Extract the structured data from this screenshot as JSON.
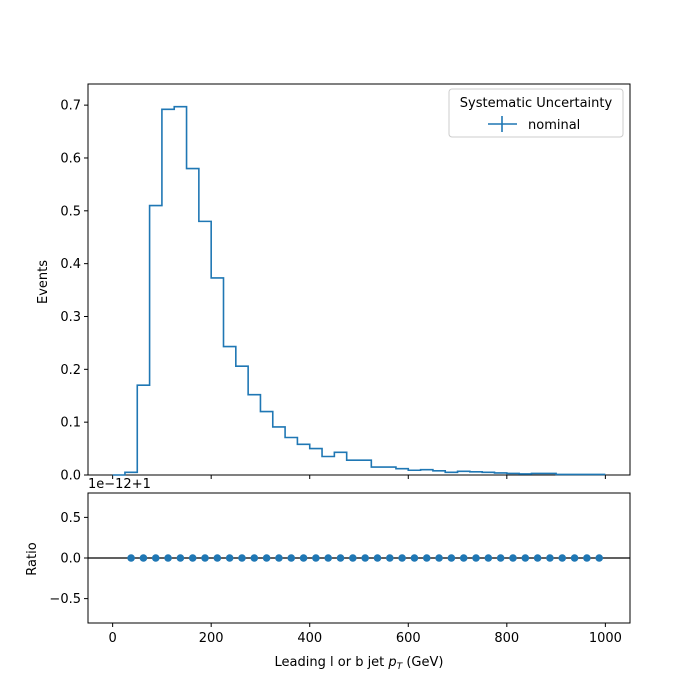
{
  "colors": {
    "series": "#1f77b4",
    "axes": "#000000",
    "background": "#ffffff"
  },
  "legend": {
    "title": "Systematic Uncertainty",
    "placement": "top-right"
  },
  "chart_data": [
    {
      "type": "histogram",
      "ylabel": "Events",
      "xlim": [
        -50,
        1050
      ],
      "ylim": [
        0,
        0.74
      ],
      "yticks": [
        0.0,
        0.1,
        0.2,
        0.3,
        0.4,
        0.5,
        0.6,
        0.7
      ],
      "ytick_labels": [
        "0.0",
        "0.1",
        "0.2",
        "0.3",
        "0.4",
        "0.5",
        "0.6",
        "0.7"
      ],
      "xticks": [
        0,
        200,
        400,
        600,
        800,
        1000
      ],
      "bin_edges": [
        0,
        25,
        50,
        75,
        100,
        125,
        150,
        175,
        200,
        225,
        250,
        275,
        300,
        325,
        350,
        375,
        400,
        425,
        450,
        475,
        500,
        525,
        550,
        575,
        600,
        625,
        650,
        675,
        700,
        725,
        750,
        775,
        800,
        825,
        850,
        875,
        900,
        925,
        950,
        975,
        1000
      ],
      "series": [
        {
          "name": "nominal",
          "values": [
            0.0,
            0.005,
            0.17,
            0.51,
            0.692,
            0.697,
            0.58,
            0.48,
            0.373,
            0.243,
            0.206,
            0.152,
            0.12,
            0.091,
            0.071,
            0.058,
            0.05,
            0.035,
            0.043,
            0.028,
            0.028,
            0.015,
            0.015,
            0.012,
            0.009,
            0.01,
            0.008,
            0.005,
            0.007,
            0.006,
            0.005,
            0.004,
            0.003,
            0.002,
            0.003,
            0.003,
            0.001,
            0.001,
            0.001,
            0.001
          ]
        }
      ],
      "grid": false
    },
    {
      "type": "scatter",
      "ylabel": "Ratio",
      "xlabel_prefix": "Leading l or b jet ",
      "xlabel_var": "p",
      "xlabel_sub": "T",
      "xlabel_suffix": " (GeV)",
      "offset_text": "1e−12+1",
      "xlim": [
        -50,
        1050
      ],
      "ylim": [
        -0.8,
        0.8
      ],
      "yticks": [
        -0.5,
        0.0,
        0.5
      ],
      "ytick_labels": [
        "−0.5",
        "0.0",
        "0.5"
      ],
      "xticks": [
        0,
        200,
        400,
        600,
        800,
        1000
      ],
      "xtick_labels": [
        "0",
        "200",
        "400",
        "600",
        "800",
        "1000"
      ],
      "reference_line": 0.0,
      "series": [
        {
          "name": "nominal",
          "x": [
            37.5,
            62.5,
            87.5,
            112.5,
            137.5,
            162.5,
            187.5,
            212.5,
            237.5,
            262.5,
            287.5,
            312.5,
            337.5,
            362.5,
            387.5,
            412.5,
            437.5,
            462.5,
            487.5,
            512.5,
            537.5,
            562.5,
            587.5,
            612.5,
            637.5,
            662.5,
            687.5,
            712.5,
            737.5,
            762.5,
            787.5,
            812.5,
            837.5,
            862.5,
            887.5,
            912.5,
            937.5,
            962.5,
            987.5
          ],
          "y": [
            0,
            0,
            0,
            0,
            0,
            0,
            0,
            0,
            0,
            0,
            0,
            0,
            0,
            0,
            0,
            0,
            0,
            0,
            0,
            0,
            0,
            0,
            0,
            0,
            0,
            0,
            0,
            0,
            0,
            0,
            0,
            0,
            0,
            0,
            0,
            0,
            0,
            0,
            0
          ]
        }
      ],
      "grid": false
    }
  ]
}
